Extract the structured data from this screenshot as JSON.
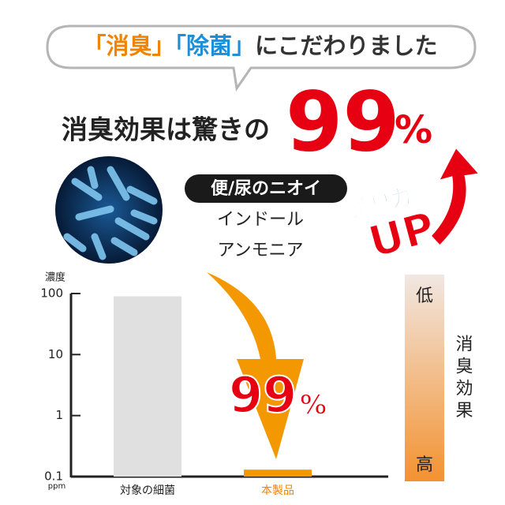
{
  "bubble": [
    "「消臭」",
    "「除菌」",
    "にこだわりました"
  ],
  "headline": {
    "text": "消臭効果は驚きの",
    "number": 99,
    "unit": "%"
  },
  "odor": {
    "title": "便/尿のニオイ",
    "items": [
      "インドール",
      "アンモニア"
    ]
  },
  "boost": {
    "text": "消臭力",
    "up": "UP"
  },
  "arrow_label": {
    "number": 99,
    "unit": "%"
  },
  "effect_scale": {
    "low": "低",
    "high": "高",
    "label": "消臭効果"
  },
  "chart_data": {
    "type": "bar",
    "log_scale": true,
    "y_label": "濃度",
    "y_unit": "ppm",
    "categories": [
      "対象の細菌",
      "本製品"
    ],
    "values": [
      90,
      0.13
    ],
    "colors": [
      "#e0e0e0",
      "#f39800"
    ],
    "ylim": [
      0.1,
      100
    ],
    "yticks": [
      100,
      10,
      1,
      0.1
    ]
  }
}
